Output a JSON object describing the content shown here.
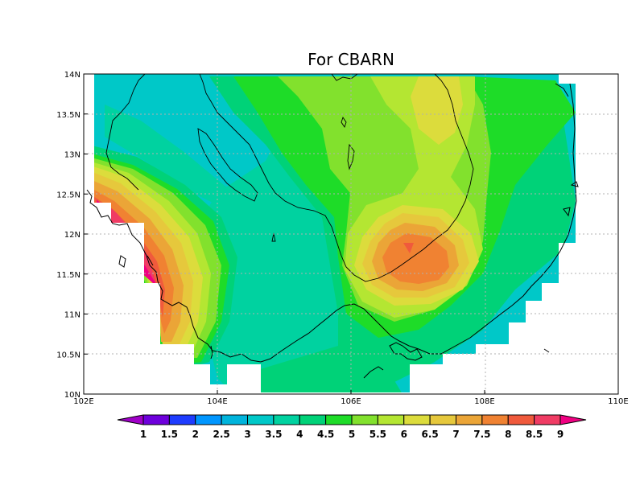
{
  "title": "For CBARN",
  "extent": {
    "lon_min": 102,
    "lon_max": 110,
    "lat_min": 10,
    "lat_max": 14
  },
  "x_ticks": [
    {
      "value": 102,
      "label": "102E"
    },
    {
      "value": 104,
      "label": "104E"
    },
    {
      "value": 106,
      "label": "106E"
    },
    {
      "value": 108,
      "label": "108E"
    },
    {
      "value": 110,
      "label": "110E"
    }
  ],
  "y_ticks": [
    {
      "value": 10,
      "label": "10N"
    },
    {
      "value": 10.5,
      "label": "10.5N"
    },
    {
      "value": 11,
      "label": "11N"
    },
    {
      "value": 11.5,
      "label": "11.5N"
    },
    {
      "value": 12,
      "label": "12N"
    },
    {
      "value": 12.5,
      "label": "12.5N"
    },
    {
      "value": 13,
      "label": "13N"
    },
    {
      "value": 13.5,
      "label": "13.5N"
    },
    {
      "value": 14,
      "label": "14N"
    }
  ],
  "grid": "dotted",
  "colorbar": {
    "labels": [
      "1",
      "1.5",
      "2",
      "2.5",
      "3",
      "3.5",
      "4",
      "4.5",
      "5",
      "5.5",
      "6",
      "6.5",
      "7",
      "7.5",
      "8",
      "8.5",
      "9"
    ],
    "colors": [
      "#a000c8",
      "#6e00dc",
      "#1e3cff",
      "#0096ff",
      "#00b4dc",
      "#00c8c8",
      "#00d2a0",
      "#00d278",
      "#1edc28",
      "#82e12d",
      "#b4e632",
      "#dcdc3c",
      "#e6c83c",
      "#eba537",
      "#f08232",
      "#f05a3c",
      "#f03c64",
      "#f00082"
    ]
  },
  "field_bands": [
    {
      "level": "3.5",
      "color": "#00c8c8"
    },
    {
      "level": "4",
      "color": "#00d2a0"
    },
    {
      "level": "4.5",
      "color": "#00d278"
    },
    {
      "level": "5",
      "color": "#1edc28"
    },
    {
      "level": "5.5",
      "color": "#82e12d"
    },
    {
      "level": "6",
      "color": "#b4e632"
    },
    {
      "level": "6.5",
      "color": "#dcdc3c"
    },
    {
      "level": "7",
      "color": "#e6c83c"
    },
    {
      "level": "7.5",
      "color": "#eba537"
    },
    {
      "level": "8",
      "color": "#f08232"
    },
    {
      "level": "8.5",
      "color": "#f05a3c"
    },
    {
      "level": "9",
      "color": "#f00082"
    }
  ]
}
